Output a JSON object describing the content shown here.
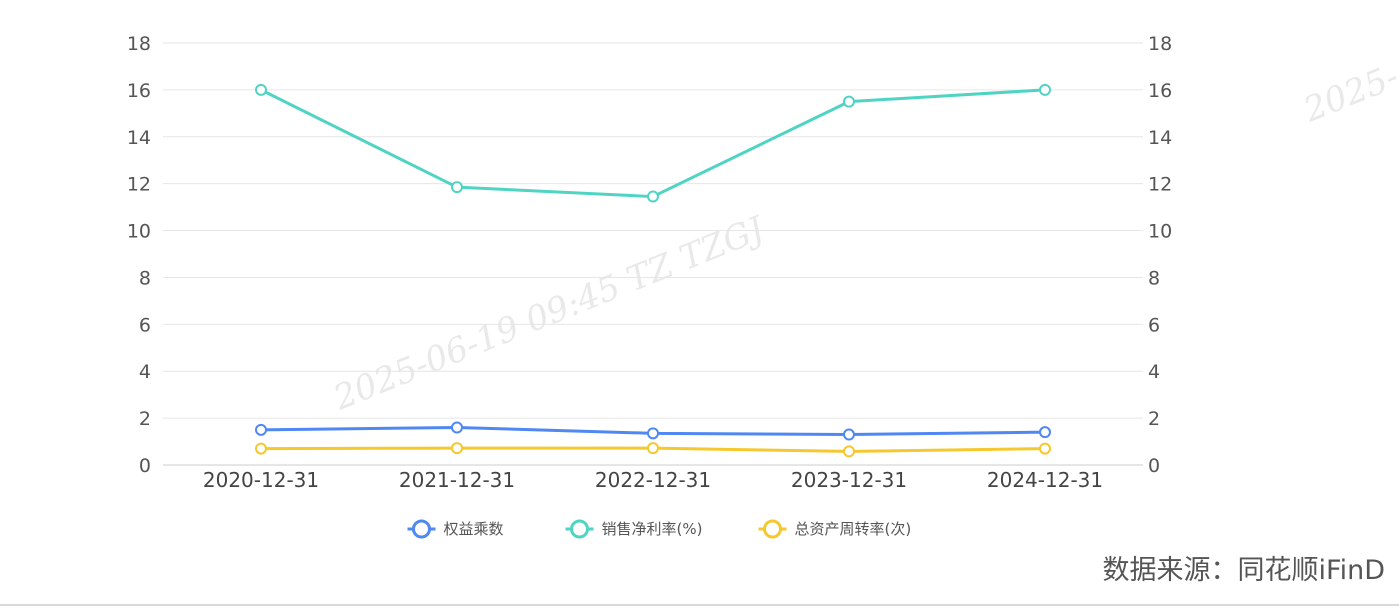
{
  "chart_data": {
    "type": "line",
    "categories": [
      "2020-12-31",
      "2021-12-31",
      "2022-12-31",
      "2023-12-31",
      "2024-12-31"
    ],
    "series": [
      {
        "name": "权益乘数",
        "color": "#4f87f3",
        "values": [
          1.5,
          1.6,
          1.35,
          1.3,
          1.4
        ]
      },
      {
        "name": "销售净利率(%)",
        "color": "#4fd4c4",
        "values": [
          16.0,
          11.85,
          11.45,
          15.5,
          16.0
        ]
      },
      {
        "name": "总资产周转率(次)",
        "color": "#f5c82e",
        "values": [
          0.7,
          0.72,
          0.72,
          0.58,
          0.7
        ]
      }
    ],
    "ylim": [
      0,
      18
    ],
    "yticks": [
      0,
      2,
      4,
      6,
      8,
      10,
      12,
      14,
      16,
      18
    ],
    "y2lim": [
      0,
      18
    ],
    "y2ticks": [
      0,
      2,
      4,
      6,
      8,
      10,
      12,
      14,
      16,
      18
    ],
    "grid": true,
    "legend": "bottom-center"
  },
  "watermark": {
    "main": "2025-06-19 09:45 TZ TZGJ",
    "corner": "2025-"
  },
  "source": "数据来源：同花顺iFinD"
}
